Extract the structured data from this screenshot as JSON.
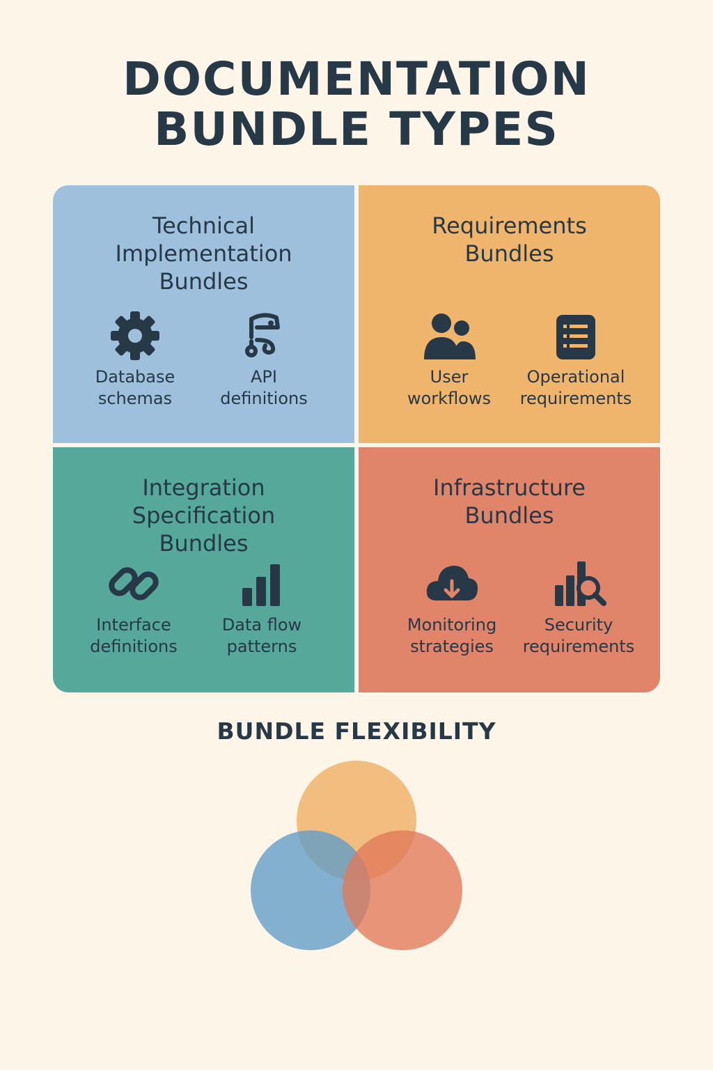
{
  "title": {
    "line1": "DOCUMENTATION",
    "line2": "BUNDLE TYPES"
  },
  "quadrants": {
    "technical": {
      "title_lines": [
        "Technical",
        "Implementation",
        "Bundles"
      ],
      "color": "#9ec0dc",
      "items": [
        {
          "icon": "gear-icon",
          "label_lines": [
            "Database",
            "schemas"
          ]
        },
        {
          "icon": "api-tool-icon",
          "label_lines": [
            "API",
            "definitions"
          ]
        }
      ]
    },
    "requirements": {
      "title_lines": [
        "Requirements",
        "Bundles"
      ],
      "color": "#efb56d",
      "items": [
        {
          "icon": "users-icon",
          "label_lines": [
            "User",
            "workflows"
          ]
        },
        {
          "icon": "checklist-icon",
          "label_lines": [
            "Operational",
            "requirements"
          ]
        }
      ]
    },
    "integration": {
      "title_lines": [
        "Integration",
        "Specification",
        "Bundles"
      ],
      "color": "#56a89b",
      "items": [
        {
          "icon": "link-icon",
          "label_lines": [
            "Interface",
            "definitions"
          ]
        },
        {
          "icon": "bar-chart-icon",
          "label_lines": [
            "Data flow",
            "patterns"
          ]
        }
      ]
    },
    "infrastructure": {
      "title_lines": [
        "Infrastructure",
        "Bundles"
      ],
      "color": "#e0846a",
      "items": [
        {
          "icon": "cloud-download-icon",
          "label_lines": [
            "Monitoring",
            "strategies"
          ]
        },
        {
          "icon": "chart-search-icon",
          "label_lines": [
            "Security",
            "requirements"
          ]
        }
      ]
    }
  },
  "flexibility": {
    "title": "BUNDLE FLEXIBILITY",
    "circle_colors": [
      "#efb56d",
      "#5f9cc7",
      "#e0795a"
    ]
  }
}
